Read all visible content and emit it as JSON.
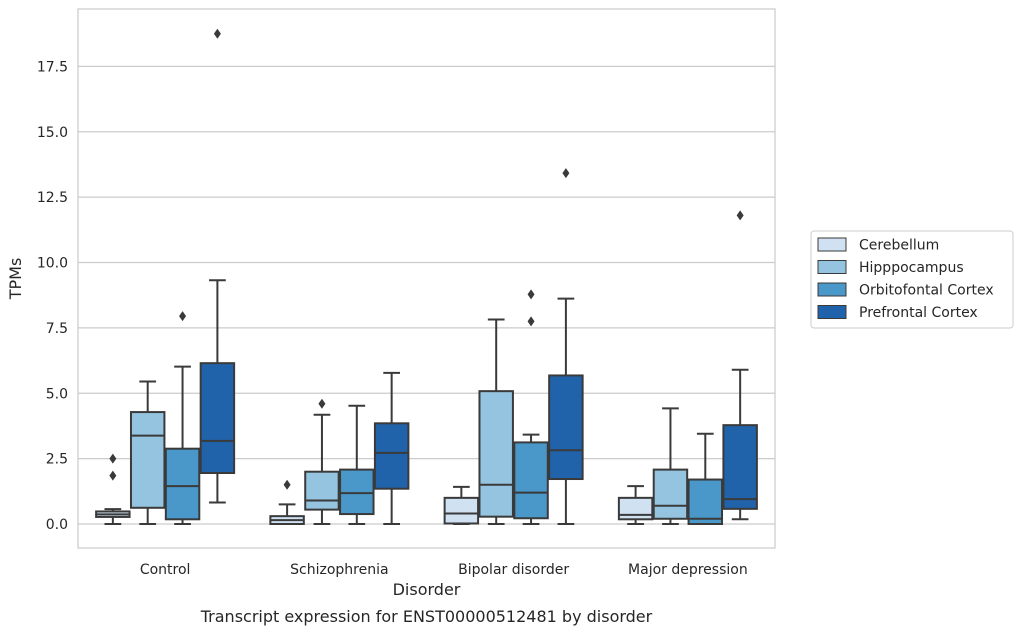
{
  "chart_data": {
    "type": "box",
    "xlabel": "Disorder",
    "ylabel": "TPMs",
    "caption": "Transcript expression for ENST00000512481 by disorder",
    "categories": [
      "Control",
      "Schizophrenia",
      "Bipolar disorder",
      "Major depression"
    ],
    "yticks": [
      "0.0",
      "2.5",
      "5.0",
      "7.5",
      "10.0",
      "12.5",
      "15.0",
      "17.5"
    ],
    "ylim": [
      -0.9,
      19.7
    ],
    "grid": true,
    "legend_position": "right",
    "series": [
      {
        "name": "Cerebellum",
        "color": "#d0e1f2",
        "boxes": [
          {
            "whislo": 0.0,
            "q1": 0.27,
            "med": 0.37,
            "q3": 0.48,
            "whishi": 0.57,
            "fliers": [
              1.85,
              2.5
            ]
          },
          {
            "whislo": 0.0,
            "q1": 0.0,
            "med": 0.15,
            "q3": 0.3,
            "whishi": 0.75,
            "fliers": [
              1.5
            ]
          },
          {
            "whislo": 0.0,
            "q1": 0.02,
            "med": 0.4,
            "q3": 1.0,
            "whishi": 1.42,
            "fliers": []
          },
          {
            "whislo": 0.0,
            "q1": 0.18,
            "med": 0.35,
            "q3": 1.0,
            "whishi": 1.45,
            "fliers": []
          }
        ]
      },
      {
        "name": "Hipppocampus",
        "color": "#94c4df",
        "boxes": [
          {
            "whislo": 0.0,
            "q1": 0.62,
            "med": 3.38,
            "q3": 4.28,
            "whishi": 5.45,
            "fliers": []
          },
          {
            "whislo": 0.0,
            "q1": 0.55,
            "med": 0.9,
            "q3": 2.0,
            "whishi": 4.18,
            "fliers": [
              4.6
            ]
          },
          {
            "whislo": 0.0,
            "q1": 0.28,
            "med": 1.5,
            "q3": 5.08,
            "whishi": 7.82,
            "fliers": []
          },
          {
            "whislo": 0.0,
            "q1": 0.2,
            "med": 0.7,
            "q3": 2.08,
            "whishi": 4.42,
            "fliers": []
          }
        ]
      },
      {
        "name": "Orbitofontal Cortex",
        "color": "#4a98c9",
        "boxes": [
          {
            "whislo": 0.0,
            "q1": 0.18,
            "med": 1.45,
            "q3": 2.88,
            "whishi": 6.02,
            "fliers": [
              7.95
            ]
          },
          {
            "whislo": 0.0,
            "q1": 0.38,
            "med": 1.18,
            "q3": 2.08,
            "whishi": 4.52,
            "fliers": []
          },
          {
            "whislo": 0.0,
            "q1": 0.22,
            "med": 1.2,
            "q3": 3.12,
            "whishi": 3.42,
            "fliers": [
              7.75,
              8.78
            ]
          },
          {
            "whislo": 0.0,
            "q1": 0.0,
            "med": 0.2,
            "q3": 1.7,
            "whishi": 3.45,
            "fliers": []
          }
        ]
      },
      {
        "name": "Prefrontal Cortex",
        "color": "#2163aa",
        "boxes": [
          {
            "whislo": 0.82,
            "q1": 1.95,
            "med": 3.18,
            "q3": 6.15,
            "whishi": 9.32,
            "fliers": [
              18.75
            ]
          },
          {
            "whislo": 0.0,
            "q1": 1.35,
            "med": 2.72,
            "q3": 3.85,
            "whishi": 5.78,
            "fliers": []
          },
          {
            "whislo": 0.0,
            "q1": 1.72,
            "med": 2.82,
            "q3": 5.68,
            "whishi": 8.62,
            "fliers": [
              13.42
            ]
          },
          {
            "whislo": 0.18,
            "q1": 0.58,
            "med": 0.95,
            "q3": 3.78,
            "whishi": 5.9,
            "fliers": [
              11.8
            ]
          }
        ]
      }
    ]
  }
}
